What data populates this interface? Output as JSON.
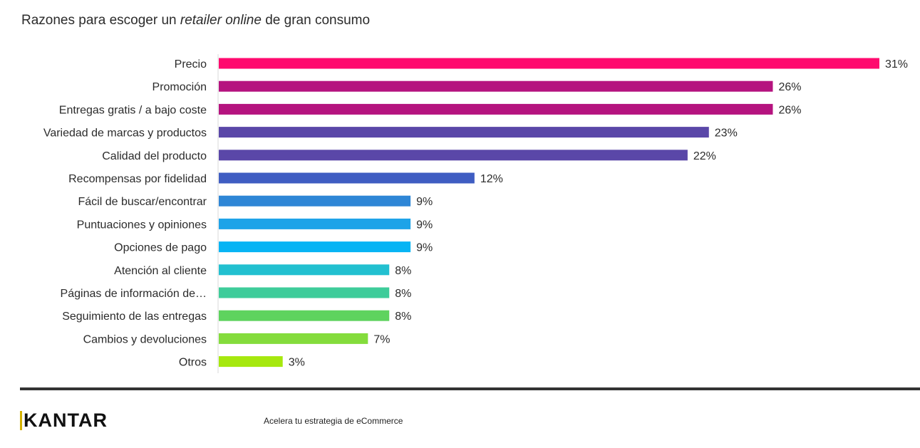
{
  "header": {
    "title_prefix": "Razones para escoger un ",
    "title_emphasis": "retailer online",
    "title_suffix": " de gran consumo"
  },
  "footer": {
    "brand": "KANTAR",
    "tagline": "Acelera tu estrategia de eCommerce"
  },
  "chart_data": {
    "type": "bar",
    "orientation": "horizontal",
    "title": "Razones para escoger un retailer online de gran consumo",
    "xlabel": "",
    "ylabel": "",
    "xlim": [
      0,
      31
    ],
    "grid": false,
    "categories": [
      "Precio",
      "Promoción",
      "Entregas gratis / a bajo coste",
      "Variedad de marcas y productos",
      "Calidad del producto",
      "Recompensas por fidelidad",
      "Fácil de buscar/encontrar",
      "Puntuaciones y opiniones",
      "Opciones de pago",
      "Atención al cliente",
      "Páginas de información de…",
      "Seguimiento de las entregas",
      "Cambios y devoluciones",
      "Otros"
    ],
    "values": [
      31,
      26,
      26,
      23,
      22,
      12,
      9,
      9,
      9,
      8,
      8,
      8,
      7,
      3
    ],
    "value_labels": [
      "31%",
      "26%",
      "26%",
      "23%",
      "22%",
      "12%",
      "9%",
      "9%",
      "9%",
      "8%",
      "8%",
      "8%",
      "7%",
      "3%"
    ],
    "colors": [
      "#ff0a6e",
      "#b5137f",
      "#b5137f",
      "#5a47a8",
      "#5a47a8",
      "#3f5dc2",
      "#2e86d6",
      "#1ea3e8",
      "#07b4f4",
      "#22c0d0",
      "#3ecc9a",
      "#5ed35e",
      "#84dc3c",
      "#a6e80e"
    ]
  }
}
